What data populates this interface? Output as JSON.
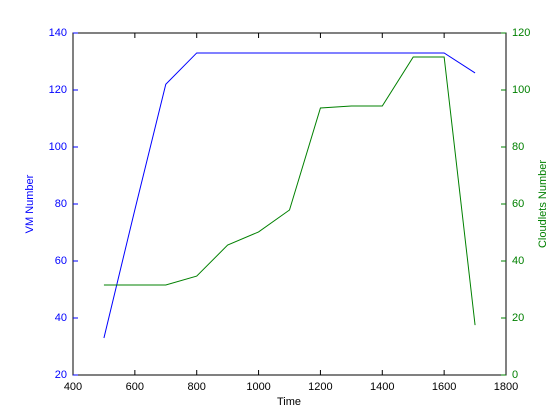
{
  "chart_data": {
    "type": "line",
    "x_label": "Time",
    "y_label": "VM Number",
    "y2_label": "Cloudlets Number",
    "x": [
      500,
      600,
      700,
      800,
      900,
      1000,
      1100,
      1200,
      1300,
      1400,
      1500,
      1600,
      1700
    ],
    "series": [
      {
        "name": "VM Number",
        "color": "#0000ff",
        "values": [
          33,
          78,
          122,
          133,
          133,
          133,
          133,
          133,
          133,
          133,
          133,
          133,
          126
        ]
      },
      {
        "name": "Cloudlets Number",
        "color": "#008000",
        "axis": "y2",
        "values": [
          31.6,
          31.6,
          31.6,
          34.7,
          45.6,
          50.2,
          57.9,
          93.7,
          94.4,
          94.4,
          111.6,
          111.6,
          17.5
        ]
      }
    ],
    "xlim": [
      400,
      1800
    ],
    "xticks": [
      400,
      600,
      800,
      1000,
      1200,
      1400,
      1600,
      1800
    ],
    "ylim": [
      20,
      140
    ],
    "yticks": [
      20,
      40,
      60,
      80,
      100,
      120,
      140
    ],
    "y2lim": [
      0,
      120
    ],
    "y2ticks": [
      0,
      20,
      40,
      60,
      80,
      100,
      120
    ],
    "grid": false
  }
}
